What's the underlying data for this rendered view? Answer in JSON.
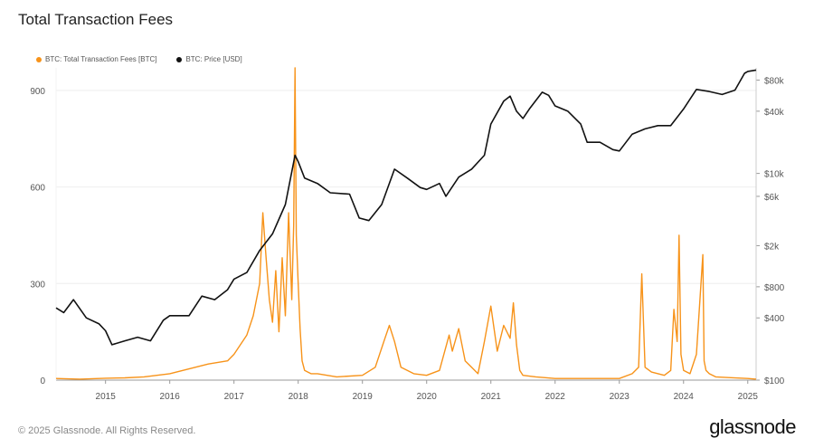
{
  "title": "Total Transaction Fees",
  "legend": {
    "fees_label": "BTC: Total Transaction Fees [BTC]",
    "price_label": "BTC: Price [USD]"
  },
  "footer": "© 2025 Glassnode. All Rights Reserved.",
  "brand": "glassnode",
  "colors": {
    "fees": "#F7931A",
    "price": "#111111",
    "grid": "#eeeeee"
  },
  "chart_data": {
    "type": "line",
    "title": "Total Transaction Fees",
    "grid": true,
    "legend_position": "top-left",
    "x_ticks": [
      "2015",
      "2016",
      "2017",
      "2018",
      "2019",
      "2020",
      "2021",
      "2022",
      "2023",
      "2024",
      "2025"
    ],
    "x_range": [
      2014.23,
      2025.13
    ],
    "y_left_ticks": [
      "0",
      "300",
      "600",
      "900"
    ],
    "y_left_range": [
      0,
      970
    ],
    "y_right_ticks": [
      "$100",
      "$400",
      "$800",
      "$2k",
      "$6k",
      "$10k",
      "$40k",
      "$80k"
    ],
    "y_right_tick_values": [
      100,
      400,
      800,
      2000,
      6000,
      10000,
      40000,
      80000
    ],
    "y_right_range": [
      100,
      105000
    ],
    "y_right_scale": "log",
    "series": [
      {
        "name": "BTC: Total Transaction Fees [BTC]",
        "axis": "left",
        "x": [
          2014.23,
          2014.6,
          2015.0,
          2015.3,
          2015.6,
          2016.0,
          2016.3,
          2016.6,
          2016.9,
          2017.0,
          2017.1,
          2017.2,
          2017.3,
          2017.4,
          2017.45,
          2017.5,
          2017.55,
          2017.6,
          2017.65,
          2017.7,
          2017.75,
          2017.8,
          2017.85,
          2017.9,
          2017.93,
          2017.95,
          2017.97,
          2018.0,
          2018.03,
          2018.06,
          2018.1,
          2018.15,
          2018.2,
          2018.3,
          2018.6,
          2019.0,
          2019.2,
          2019.35,
          2019.42,
          2019.5,
          2019.6,
          2019.8,
          2020.0,
          2020.2,
          2020.35,
          2020.4,
          2020.5,
          2020.6,
          2020.7,
          2020.8,
          2020.9,
          2021.0,
          2021.1,
          2021.2,
          2021.3,
          2021.35,
          2021.4,
          2021.45,
          2021.5,
          2021.7,
          2022.0,
          2022.5,
          2023.0,
          2023.2,
          2023.3,
          2023.35,
          2023.4,
          2023.5,
          2023.7,
          2023.8,
          2023.85,
          2023.9,
          2023.93,
          2023.96,
          2024.0,
          2024.1,
          2024.2,
          2024.3,
          2024.32,
          2024.35,
          2024.4,
          2024.5,
          2024.7,
          2025.0,
          2025.13
        ],
        "values": [
          5,
          3,
          6,
          7,
          10,
          20,
          35,
          50,
          60,
          80,
          110,
          140,
          200,
          300,
          520,
          380,
          250,
          180,
          340,
          150,
          380,
          200,
          520,
          250,
          480,
          970,
          450,
          300,
          160,
          60,
          30,
          25,
          20,
          20,
          10,
          15,
          40,
          130,
          170,
          120,
          40,
          20,
          15,
          30,
          140,
          90,
          160,
          60,
          40,
          20,
          120,
          230,
          90,
          170,
          130,
          240,
          110,
          30,
          15,
          10,
          5,
          5,
          5,
          20,
          40,
          330,
          40,
          25,
          15,
          30,
          220,
          120,
          450,
          80,
          30,
          20,
          80,
          390,
          60,
          30,
          20,
          10,
          8,
          5,
          3
        ]
      },
      {
        "name": "BTC: Price [USD]",
        "axis": "right",
        "x": [
          2014.23,
          2014.35,
          2014.5,
          2014.7,
          2014.9,
          2015.0,
          2015.1,
          2015.3,
          2015.5,
          2015.7,
          2015.9,
          2016.0,
          2016.3,
          2016.5,
          2016.7,
          2016.9,
          2017.0,
          2017.2,
          2017.4,
          2017.6,
          2017.8,
          2017.95,
          2018.0,
          2018.1,
          2018.3,
          2018.5,
          2018.8,
          2018.95,
          2019.1,
          2019.3,
          2019.5,
          2019.7,
          2019.9,
          2020.0,
          2020.2,
          2020.3,
          2020.5,
          2020.7,
          2020.9,
          2021.0,
          2021.2,
          2021.3,
          2021.4,
          2021.5,
          2021.6,
          2021.8,
          2021.9,
          2022.0,
          2022.2,
          2022.4,
          2022.5,
          2022.7,
          2022.9,
          2023.0,
          2023.2,
          2023.4,
          2023.6,
          2023.8,
          2024.0,
          2024.2,
          2024.4,
          2024.6,
          2024.8,
          2024.95,
          2025.0,
          2025.13
        ],
        "values": [
          500,
          450,
          600,
          400,
          350,
          300,
          220,
          240,
          260,
          240,
          380,
          420,
          420,
          650,
          600,
          750,
          950,
          1100,
          1800,
          2600,
          5000,
          15000,
          13000,
          9000,
          8000,
          6500,
          6300,
          3700,
          3500,
          5000,
          11000,
          9000,
          7300,
          7000,
          8000,
          6000,
          9200,
          11000,
          15000,
          30000,
          50000,
          56000,
          40000,
          34000,
          42000,
          61000,
          57000,
          45000,
          40000,
          30000,
          20000,
          20000,
          17000,
          16500,
          24000,
          27000,
          29000,
          29000,
          42000,
          65000,
          62000,
          58000,
          64000,
          93000,
          97000,
          100000
        ]
      }
    ]
  }
}
